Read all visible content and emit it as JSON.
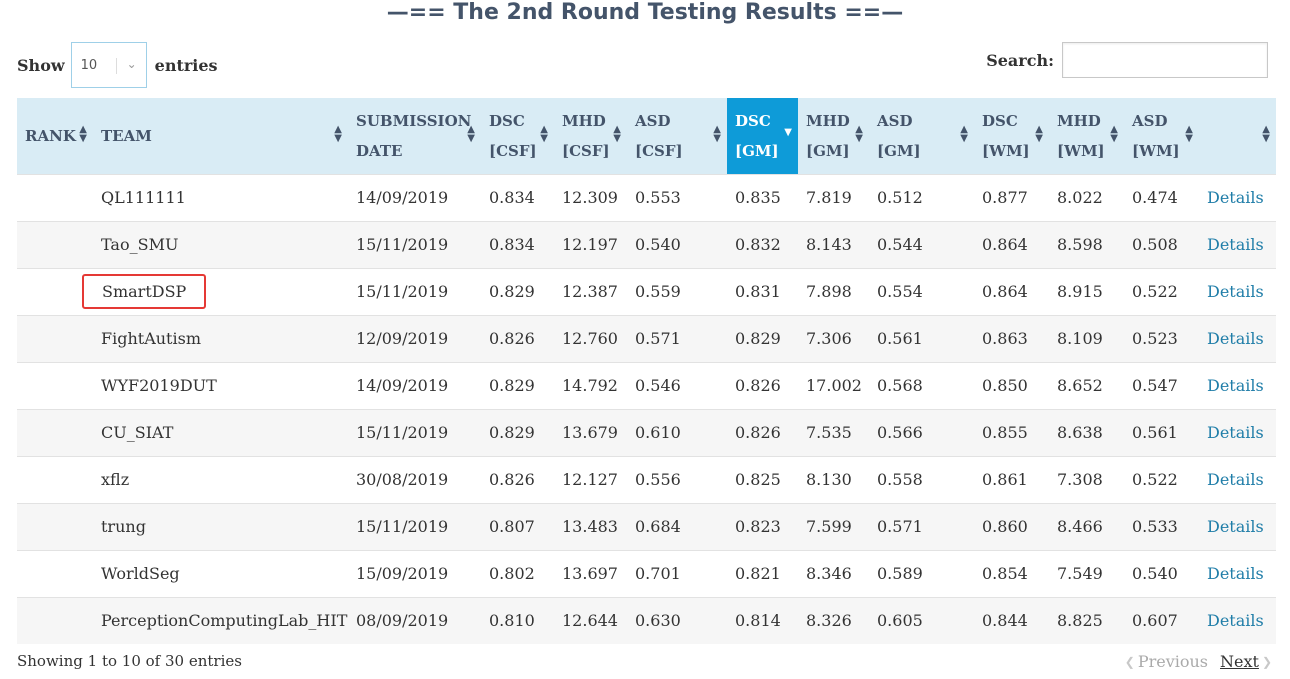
{
  "title": "—== The 2nd Round Testing Results ==—",
  "length": {
    "show_label": "Show",
    "selected": "10",
    "entries_label": "entries"
  },
  "search": {
    "label": "Search:",
    "value": ""
  },
  "columns": [
    {
      "line1": "RANK",
      "line2": ""
    },
    {
      "line1": "TEAM",
      "line2": ""
    },
    {
      "line1": "SUBMISSION",
      "line2": "DATE"
    },
    {
      "line1": "DSC",
      "line2": "[CSF]"
    },
    {
      "line1": "MHD",
      "line2": "[CSF]"
    },
    {
      "line1": "ASD",
      "line2": "[CSF]"
    },
    {
      "line1": "DSC",
      "line2": "[GM]"
    },
    {
      "line1": "MHD",
      "line2": "[GM]"
    },
    {
      "line1": "ASD",
      "line2": "[GM]"
    },
    {
      "line1": "DSC",
      "line2": "[WM]"
    },
    {
      "line1": "MHD",
      "line2": "[WM]"
    },
    {
      "line1": "ASD",
      "line2": "[WM]"
    },
    {
      "line1": "",
      "line2": ""
    }
  ],
  "rows": [
    {
      "rank": "",
      "team": "QL111111",
      "date": "14/09/2019",
      "dsc_csf": "0.834",
      "mhd_csf": "12.309",
      "asd_csf": "0.553",
      "dsc_gm": "0.835",
      "mhd_gm": "7.819",
      "asd_gm": "0.512",
      "dsc_wm": "0.877",
      "mhd_wm": "8.022",
      "asd_wm": "0.474",
      "link": "Details"
    },
    {
      "rank": "",
      "team": "Tao_SMU",
      "date": "15/11/2019",
      "dsc_csf": "0.834",
      "mhd_csf": "12.197",
      "asd_csf": "0.540",
      "dsc_gm": "0.832",
      "mhd_gm": "8.143",
      "asd_gm": "0.544",
      "dsc_wm": "0.864",
      "mhd_wm": "8.598",
      "asd_wm": "0.508",
      "link": "Details"
    },
    {
      "rank": "",
      "team": "SmartDSP",
      "date": "15/11/2019",
      "dsc_csf": "0.829",
      "mhd_csf": "12.387",
      "asd_csf": "0.559",
      "dsc_gm": "0.831",
      "mhd_gm": "7.898",
      "asd_gm": "0.554",
      "dsc_wm": "0.864",
      "mhd_wm": "8.915",
      "asd_wm": "0.522",
      "link": "Details"
    },
    {
      "rank": "",
      "team": "FightAutism",
      "date": "12/09/2019",
      "dsc_csf": "0.826",
      "mhd_csf": "12.760",
      "asd_csf": "0.571",
      "dsc_gm": "0.829",
      "mhd_gm": "7.306",
      "asd_gm": "0.561",
      "dsc_wm": "0.863",
      "mhd_wm": "8.109",
      "asd_wm": "0.523",
      "link": "Details"
    },
    {
      "rank": "",
      "team": "WYF2019DUT",
      "date": "14/09/2019",
      "dsc_csf": "0.829",
      "mhd_csf": "14.792",
      "asd_csf": "0.546",
      "dsc_gm": "0.826",
      "mhd_gm": "17.002",
      "asd_gm": "0.568",
      "dsc_wm": "0.850",
      "mhd_wm": "8.652",
      "asd_wm": "0.547",
      "link": "Details"
    },
    {
      "rank": "",
      "team": "CU_SIAT",
      "date": "15/11/2019",
      "dsc_csf": "0.829",
      "mhd_csf": "13.679",
      "asd_csf": "0.610",
      "dsc_gm": "0.826",
      "mhd_gm": "7.535",
      "asd_gm": "0.566",
      "dsc_wm": "0.855",
      "mhd_wm": "8.638",
      "asd_wm": "0.561",
      "link": "Details"
    },
    {
      "rank": "",
      "team": "xflz",
      "date": "30/08/2019",
      "dsc_csf": "0.826",
      "mhd_csf": "12.127",
      "asd_csf": "0.556",
      "dsc_gm": "0.825",
      "mhd_gm": "8.130",
      "asd_gm": "0.558",
      "dsc_wm": "0.861",
      "mhd_wm": "7.308",
      "asd_wm": "0.522",
      "link": "Details"
    },
    {
      "rank": "",
      "team": "trung",
      "date": "15/11/2019",
      "dsc_csf": "0.807",
      "mhd_csf": "13.483",
      "asd_csf": "0.684",
      "dsc_gm": "0.823",
      "mhd_gm": "7.599",
      "asd_gm": "0.571",
      "dsc_wm": "0.860",
      "mhd_wm": "8.466",
      "asd_wm": "0.533",
      "link": "Details"
    },
    {
      "rank": "",
      "team": "WorldSeg",
      "date": "15/09/2019",
      "dsc_csf": "0.802",
      "mhd_csf": "13.697",
      "asd_csf": "0.701",
      "dsc_gm": "0.821",
      "mhd_gm": "8.346",
      "asd_gm": "0.589",
      "dsc_wm": "0.854",
      "mhd_wm": "7.549",
      "asd_wm": "0.540",
      "link": "Details"
    },
    {
      "rank": "",
      "team": "PerceptionComputingLab_HIT",
      "date": "08/09/2019",
      "dsc_csf": "0.810",
      "mhd_csf": "12.644",
      "asd_csf": "0.630",
      "dsc_gm": "0.814",
      "mhd_gm": "8.326",
      "asd_gm": "0.605",
      "dsc_wm": "0.844",
      "mhd_wm": "8.825",
      "asd_wm": "0.607",
      "link": "Details"
    }
  ],
  "info": "Showing 1 to 10 of 30 entries",
  "pagination": {
    "previous": "Previous",
    "next": "Next"
  },
  "colors": {
    "header_bg": "#d9ecf5",
    "active_sort": "#0e9bd8",
    "link": "#1f7da8",
    "highlight_border": "#e53935"
  },
  "highlighted_team": "SmartDSP",
  "sorted_column": "DSC [GM]",
  "sort_direction": "descending"
}
